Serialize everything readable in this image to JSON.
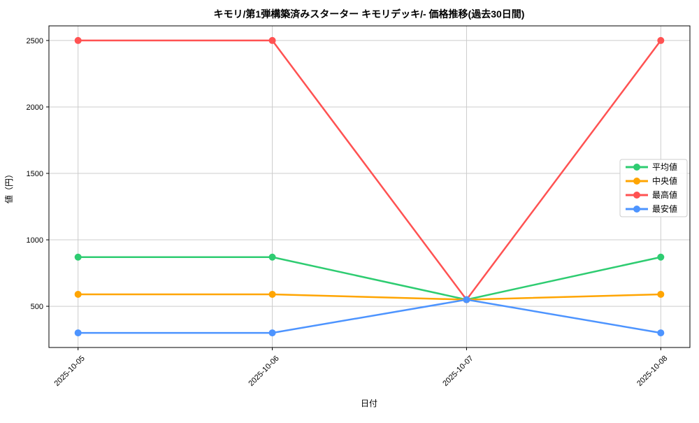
{
  "chart_data": {
    "type": "line",
    "title": "キモリ/第1弾構築済みスターター キモリデッキ/- 価格推移(過去30日間)",
    "xlabel": "日付",
    "ylabel": "値（円）",
    "categories": [
      "2025-10-05",
      "2025-10-06",
      "2025-10-07",
      "2025-10-08"
    ],
    "series": [
      {
        "name": "平均値",
        "color": "#2ecc71",
        "values": [
          870,
          870,
          550,
          870
        ]
      },
      {
        "name": "中央値",
        "color": "#ffa502",
        "values": [
          590,
          590,
          550,
          590
        ]
      },
      {
        "name": "最高値",
        "color": "#ff5252",
        "values": [
          2500,
          2500,
          550,
          2500
        ]
      },
      {
        "name": "最安値",
        "color": "#4d94ff",
        "values": [
          300,
          300,
          550,
          300
        ]
      }
    ],
    "yticks": [
      500,
      1000,
      1500,
      2000,
      2500
    ],
    "ylim": [
      190,
      2610
    ],
    "xlim": [
      -0.15,
      3.15
    ],
    "grid": true,
    "legend_position": "center-right",
    "grid_color": "#cccccc",
    "spine_color": "#000000",
    "tick_color": "#000000",
    "background_color": "#ffffff",
    "legend_border_color": "#cccccc"
  }
}
